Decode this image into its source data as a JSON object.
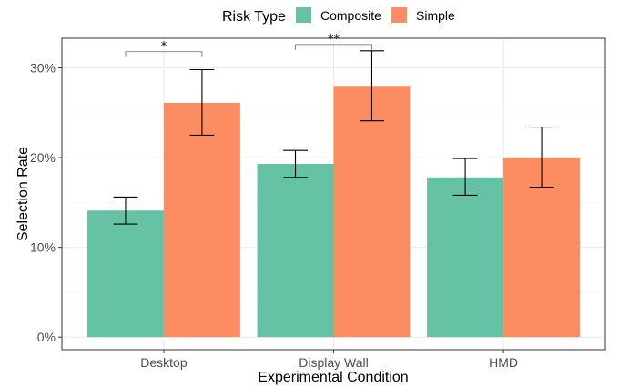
{
  "chart_data": {
    "type": "bar",
    "xlabel": "Experimental Condition",
    "ylabel": "Selection Rate",
    "legend": {
      "title": "Risk Type",
      "position": "top"
    },
    "categories": [
      "Desktop",
      "Display Wall",
      "HMD"
    ],
    "series": [
      {
        "name": "Composite",
        "color": "#66c2a5",
        "values": [
          0.141,
          0.193,
          0.178
        ],
        "error_low": [
          0.126,
          0.178,
          0.158
        ],
        "error_high": [
          0.156,
          0.208,
          0.199
        ]
      },
      {
        "name": "Simple",
        "color": "#fc8d62",
        "values": [
          0.261,
          0.28,
          0.2
        ],
        "error_low": [
          0.225,
          0.241,
          0.167
        ],
        "error_high": [
          0.298,
          0.319,
          0.234
        ]
      }
    ],
    "ylim": [
      -0.014,
      0.333
    ],
    "yticks": [
      0,
      0.1,
      0.2,
      0.3
    ],
    "ytick_labels": [
      "0%",
      "10%",
      "20%",
      "30%"
    ],
    "grid": true,
    "significance": [
      {
        "category": "Desktop",
        "label": "*",
        "y": 0.318
      },
      {
        "category": "Display Wall",
        "label": "**",
        "y": 0.326
      }
    ]
  }
}
